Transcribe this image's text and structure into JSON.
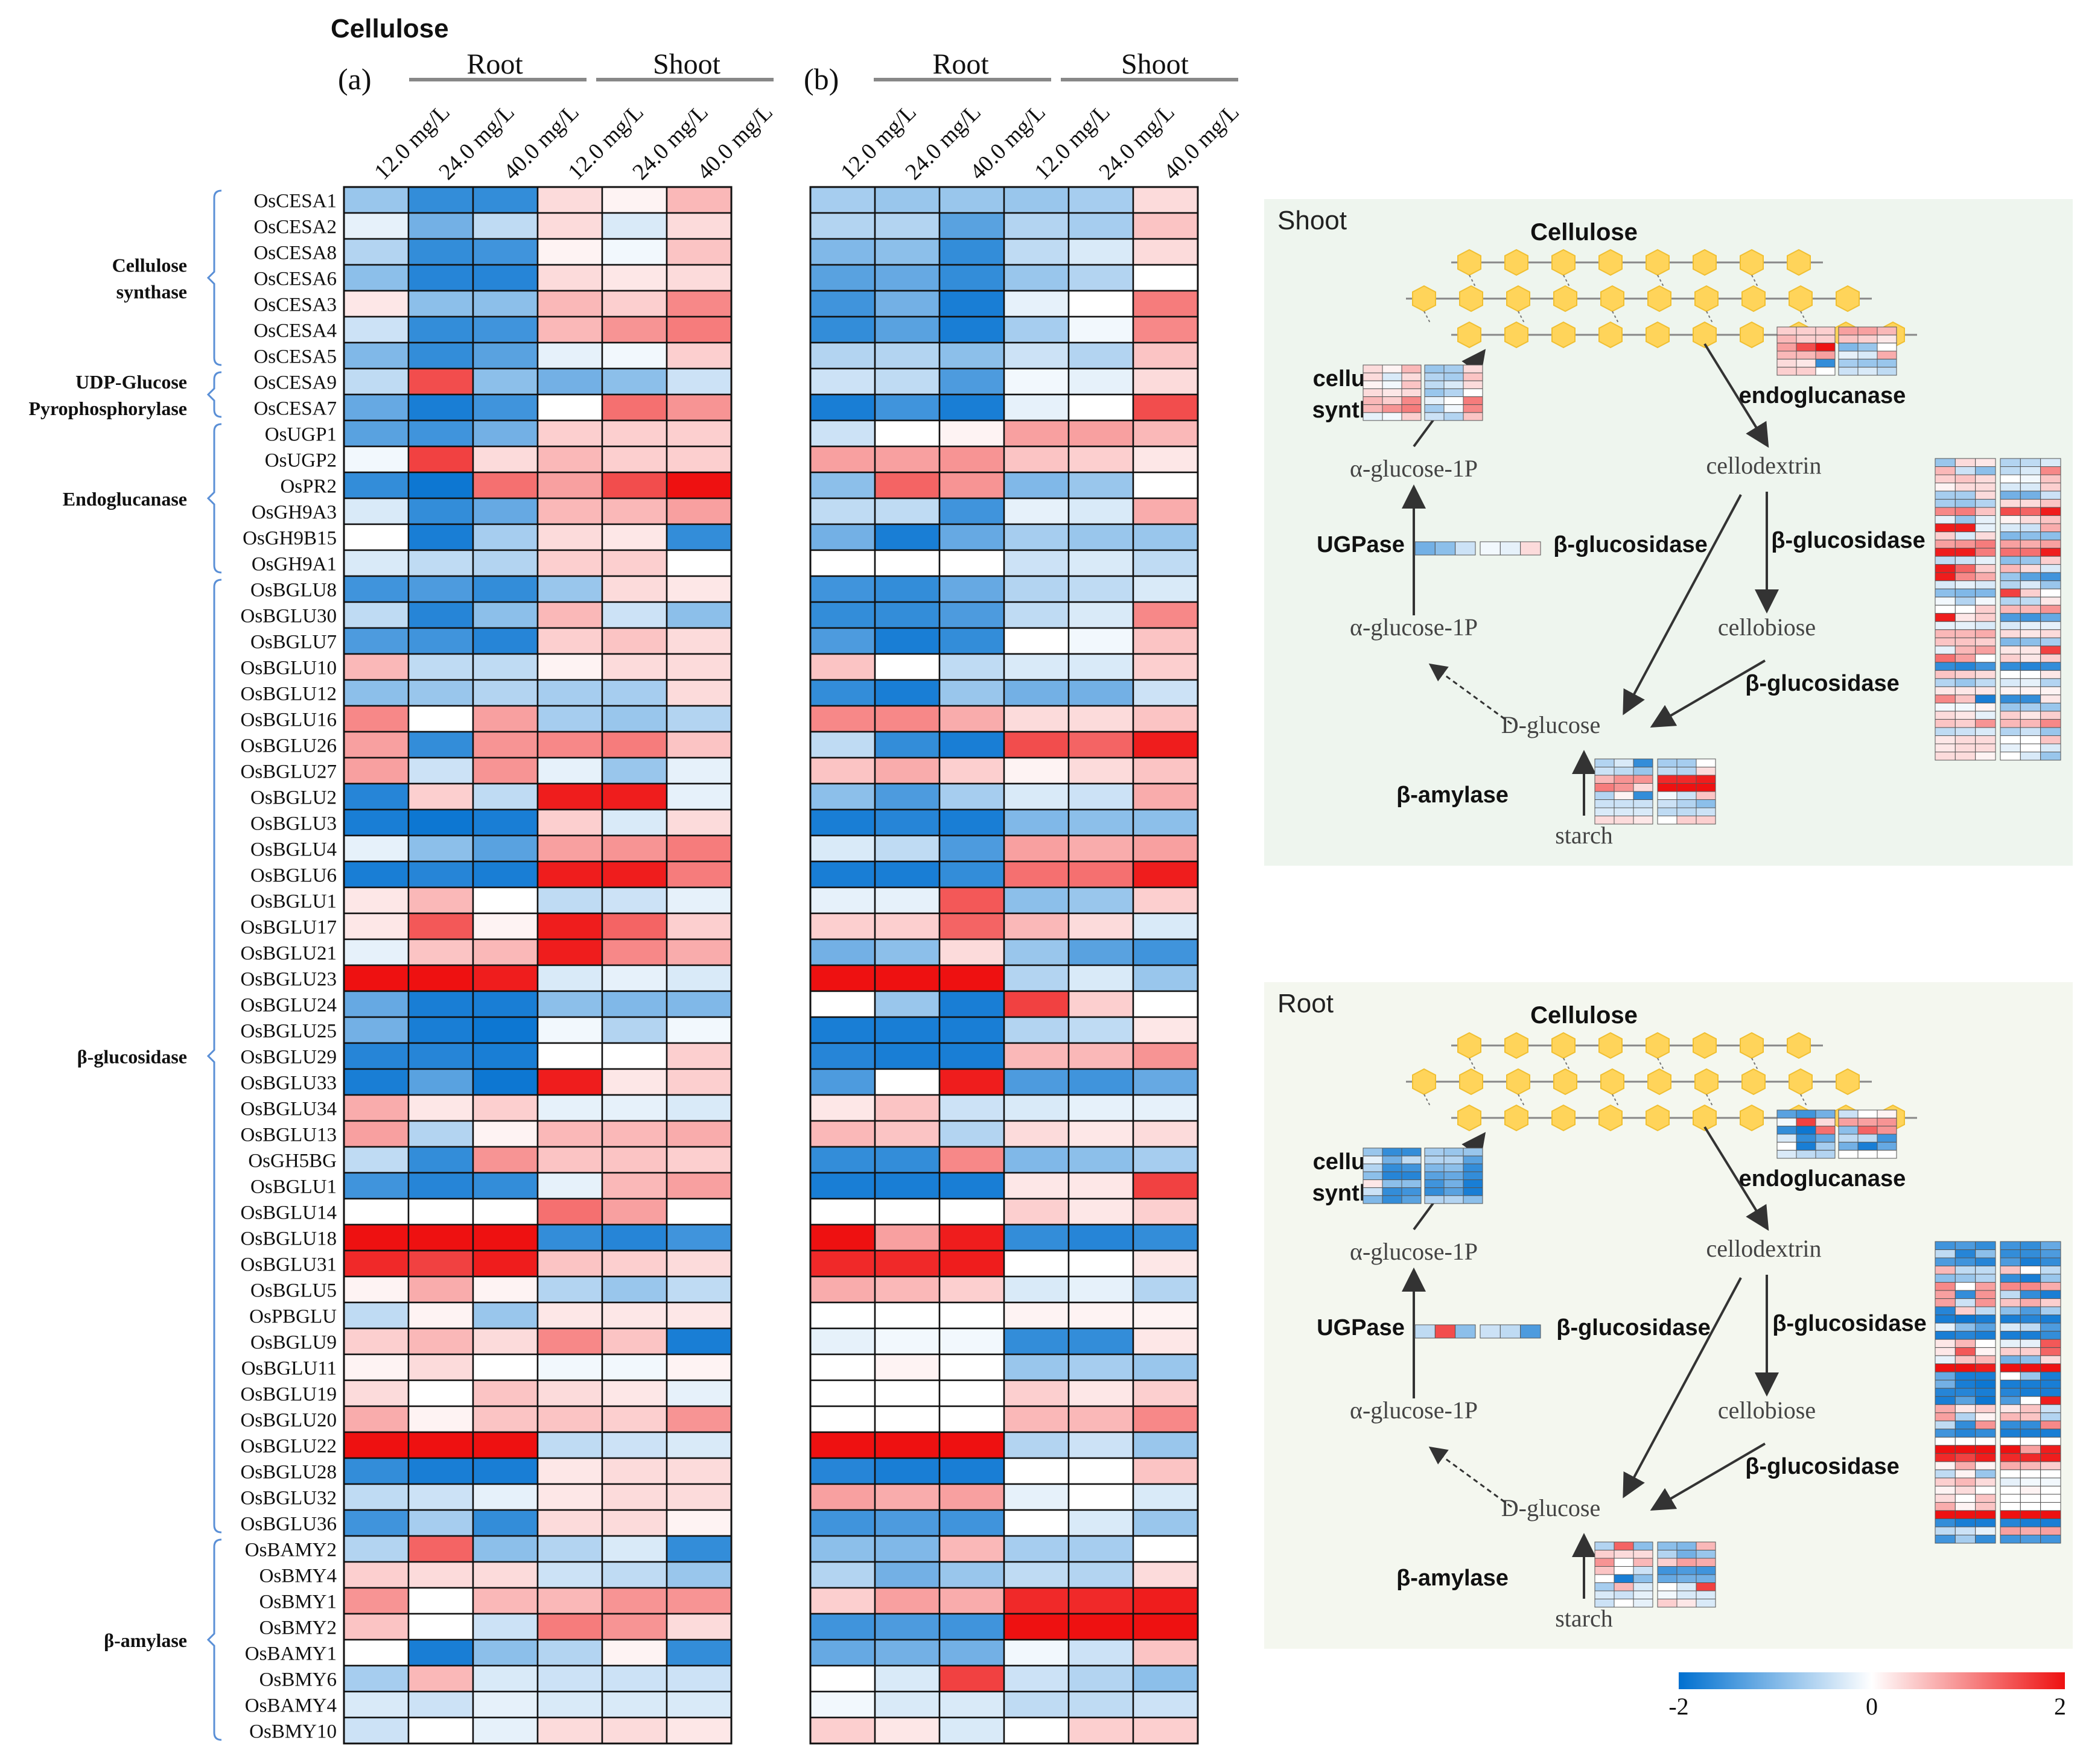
{
  "title": "Cellulose",
  "panel_a_label": "(a)",
  "panel_b_label": "(b)",
  "tissue_labels": [
    "Root",
    "Shoot"
  ],
  "chart_data": {
    "type": "heatmap",
    "columns": [
      "12.0 mg/L",
      "24.0 mg/L",
      "40.0 mg/L",
      "12.0 mg/L",
      "24.0 mg/L",
      "40.0 mg/L"
    ],
    "column_groups": [
      {
        "name": "Root",
        "span": 3
      },
      {
        "name": "Shoot",
        "span": 3
      }
    ],
    "genes": [
      "OsCESA1",
      "OsCESA2",
      "OsCESA8",
      "OsCESA6",
      "OsCESA3",
      "OsCESA4",
      "OsCESA5",
      "OsCESA9",
      "OsCESA7",
      "OsUGP1",
      "OsUGP2",
      "OsPR2",
      "OsGH9A3",
      "OsGH9B15",
      "OsGH9A1",
      "OsBGLU8",
      "OsBGLU30",
      "OsBGLU7",
      "OsBGLU10",
      "OsBGLU12",
      "OsBGLU16",
      "OsBGLU26",
      "OsBGLU27",
      "OsBGLU2",
      "OsBGLU3",
      "OsBGLU4",
      "OsBGLU6",
      "OsBGLU1",
      "OsBGLU17",
      "OsBGLU21",
      "OsBGLU23",
      "OsBGLU24",
      "OsBGLU25",
      "OsBGLU29",
      "OsBGLU33",
      "OsBGLU34",
      "OsBGLU13",
      "OsGH5BG",
      "OsBGLU1",
      "OsBGLU14",
      "OsBGLU18",
      "OsBGLU31",
      "OsBGLU5",
      "OsPBGLU",
      "OsBGLU9",
      "OsBGLU11",
      "OsBGLU19",
      "OsBGLU20",
      "OsBGLU22",
      "OsBGLU28",
      "OsBGLU32",
      "OsBGLU36",
      "OsBAMY2",
      "OsBMY4",
      "OsBMY1",
      "OsBMY2",
      "OsBAMY1",
      "OsBMY6",
      "OsBAMY4",
      "OsBMY10"
    ],
    "groups": [
      {
        "name": "Cellulose synthase",
        "lines": [
          "Cellulose",
          "synthase"
        ],
        "start": 0,
        "end": 6
      },
      {
        "name": "UDP-Glucose Pyrophosphorylase",
        "lines": [
          "UDP-Glucose",
          "Pyrophosphorylase"
        ],
        "start": 7,
        "end": 8
      },
      {
        "name": "Endoglucanase",
        "lines": [
          "Endoglucanase"
        ],
        "start": 9,
        "end": 14
      },
      {
        "name": "β-glucosidase",
        "lines": [
          "β-glucosidase"
        ],
        "start": 15,
        "end": 51
      },
      {
        "name": "β-amylase",
        "lines": [
          "β-amylase"
        ],
        "start": 52,
        "end": 59
      }
    ],
    "values_a": [
      [
        -0.8,
        -1.6,
        -1.6,
        0.3,
        0.1,
        0.6
      ],
      [
        -0.2,
        -1.1,
        -0.5,
        0.3,
        -0.3,
        0.3
      ],
      [
        -0.6,
        -1.6,
        -1.5,
        0.1,
        -0.1,
        0.5
      ],
      [
        -0.9,
        -1.7,
        -1.7,
        0.3,
        0.2,
        0.3
      ],
      [
        0.2,
        -0.9,
        -0.9,
        0.6,
        0.4,
        1.0
      ],
      [
        -0.4,
        -1.6,
        -1.5,
        0.6,
        0.9,
        1.1
      ],
      [
        -1.0,
        -1.6,
        -1.3,
        -0.2,
        -0.1,
        0.4
      ],
      [
        -0.5,
        1.5,
        -0.9,
        -1.1,
        -0.9,
        -0.4
      ],
      [
        -1.2,
        -1.8,
        -1.5,
        0.0,
        1.2,
        0.9
      ],
      [
        -1.3,
        -1.5,
        -1.1,
        0.4,
        0.4,
        0.4
      ],
      [
        -0.1,
        1.6,
        0.3,
        0.6,
        0.4,
        0.4
      ],
      [
        -1.6,
        -1.9,
        1.2,
        0.8,
        1.5,
        2.0
      ],
      [
        -0.3,
        -1.6,
        -1.2,
        0.6,
        0.6,
        0.8
      ],
      [
        0.0,
        -1.8,
        -0.7,
        0.3,
        0.2,
        -1.6
      ],
      [
        -0.3,
        -0.5,
        -0.6,
        0.4,
        0.4,
        0.0
      ],
      [
        -1.5,
        -1.4,
        -1.6,
        -0.8,
        0.3,
        0.2
      ],
      [
        -0.5,
        -1.7,
        -0.9,
        0.6,
        -0.4,
        -0.9
      ],
      [
        -1.4,
        -1.5,
        -1.7,
        0.4,
        0.5,
        0.3
      ],
      [
        0.6,
        -0.5,
        -0.5,
        0.1,
        0.3,
        0.3
      ],
      [
        -0.9,
        -0.8,
        -0.6,
        -0.7,
        -0.7,
        0.3
      ],
      [
        1.0,
        0.0,
        0.8,
        -0.7,
        -0.8,
        -0.6
      ],
      [
        0.8,
        -1.6,
        0.9,
        1.0,
        1.1,
        0.5
      ],
      [
        0.8,
        -0.4,
        0.9,
        -0.2,
        -0.8,
        -0.2
      ],
      [
        -1.7,
        0.4,
        -0.5,
        1.9,
        1.9,
        -0.2
      ],
      [
        -1.8,
        -1.9,
        -1.8,
        0.4,
        -0.3,
        0.3
      ],
      [
        -0.2,
        -0.9,
        -1.3,
        0.8,
        0.9,
        1.1
      ],
      [
        -1.8,
        -1.7,
        -1.8,
        1.9,
        1.9,
        1.1
      ],
      [
        0.2,
        0.6,
        0.0,
        -0.5,
        -0.4,
        -0.2
      ],
      [
        0.2,
        1.4,
        0.1,
        1.9,
        1.3,
        0.4
      ],
      [
        -0.2,
        0.5,
        0.6,
        1.9,
        1.0,
        0.7
      ],
      [
        2.0,
        2.0,
        1.9,
        -0.3,
        -0.2,
        -0.3
      ],
      [
        -1.2,
        -1.8,
        -1.8,
        -0.9,
        -1.0,
        -1.0
      ],
      [
        -1.1,
        -1.8,
        -1.9,
        -0.1,
        -0.6,
        -0.1
      ],
      [
        -1.7,
        -1.7,
        -1.8,
        0.0,
        0.0,
        0.4
      ],
      [
        -1.8,
        -1.3,
        -1.9,
        1.9,
        0.2,
        0.4
      ],
      [
        0.7,
        0.2,
        0.4,
        -0.2,
        -0.2,
        -0.3
      ],
      [
        0.8,
        -0.6,
        0.1,
        0.6,
        0.6,
        0.7
      ],
      [
        -0.5,
        -1.6,
        0.9,
        0.5,
        0.5,
        0.4
      ],
      [
        -1.5,
        -1.7,
        -1.6,
        -0.2,
        0.6,
        0.8
      ],
      [
        0.0,
        0.0,
        0.0,
        1.2,
        0.8,
        0.0
      ],
      [
        2.0,
        2.0,
        2.0,
        -1.6,
        -1.7,
        -1.5
      ],
      [
        1.8,
        1.6,
        1.9,
        0.5,
        0.4,
        0.3
      ],
      [
        0.1,
        0.7,
        0.1,
        -0.6,
        -0.8,
        -0.5
      ],
      [
        -0.5,
        0.1,
        -0.8,
        0.2,
        0.2,
        0.2
      ],
      [
        0.4,
        0.6,
        0.3,
        1.0,
        0.5,
        -1.8
      ],
      [
        0.1,
        0.3,
        0.0,
        -0.1,
        -0.1,
        0.1
      ],
      [
        0.3,
        0.0,
        0.5,
        0.3,
        0.2,
        -0.2
      ],
      [
        0.7,
        0.1,
        0.5,
        0.5,
        0.4,
        0.9
      ],
      [
        2.0,
        2.0,
        2.0,
        -0.5,
        -0.4,
        -0.3
      ],
      [
        -1.6,
        -1.8,
        -1.8,
        0.2,
        0.3,
        0.3
      ],
      [
        -0.5,
        -0.4,
        -0.2,
        0.2,
        0.3,
        0.3
      ],
      [
        -1.5,
        -0.7,
        -1.6,
        0.3,
        0.3,
        0.1
      ],
      [
        -0.6,
        1.3,
        -0.9,
        -0.6,
        -0.3,
        -1.6
      ],
      [
        0.4,
        0.3,
        0.3,
        -0.4,
        -0.5,
        -0.8
      ],
      [
        0.9,
        0.0,
        0.6,
        0.6,
        0.9,
        0.9
      ],
      [
        0.5,
        0.0,
        -0.4,
        1.1,
        0.9,
        0.3
      ],
      [
        0.0,
        -1.8,
        -0.9,
        -0.6,
        0.1,
        -1.6
      ],
      [
        -0.7,
        0.6,
        -0.3,
        -0.4,
        -0.4,
        -0.4
      ],
      [
        -0.3,
        -0.4,
        -0.2,
        -0.3,
        -0.3,
        -0.3
      ],
      [
        -0.4,
        0.0,
        -0.2,
        0.3,
        0.3,
        0.2
      ]
    ],
    "values_b": [
      [
        -0.7,
        -0.8,
        -0.8,
        -0.8,
        -0.7,
        0.3
      ],
      [
        -0.6,
        -0.6,
        -1.3,
        -0.6,
        -0.7,
        0.5
      ],
      [
        -1.0,
        -0.9,
        -1.6,
        -0.5,
        -0.3,
        0.3
      ],
      [
        -1.3,
        -1.2,
        -1.6,
        -0.8,
        -0.6,
        0.0
      ],
      [
        -1.5,
        -1.1,
        -1.8,
        -0.2,
        0.0,
        1.1
      ],
      [
        -1.6,
        -1.3,
        -1.8,
        -0.7,
        -0.1,
        1.0
      ],
      [
        -0.6,
        -0.6,
        -0.9,
        -0.4,
        -0.6,
        0.5
      ],
      [
        -0.4,
        -0.5,
        -1.4,
        -0.1,
        -0.2,
        0.3
      ],
      [
        -1.8,
        -1.5,
        -1.8,
        -0.2,
        0.0,
        1.5
      ],
      [
        -0.4,
        0.0,
        0.1,
        0.8,
        0.8,
        0.6
      ],
      [
        0.8,
        0.8,
        0.9,
        0.5,
        0.4,
        0.2
      ],
      [
        -0.9,
        1.3,
        0.9,
        -1.0,
        -0.8,
        0.0
      ],
      [
        -0.5,
        -0.5,
        -1.5,
        -0.2,
        -0.3,
        0.7
      ],
      [
        -1.1,
        -1.8,
        -1.2,
        -0.7,
        -0.8,
        -0.8
      ],
      [
        0.0,
        0.0,
        0.0,
        -0.4,
        -0.3,
        -0.5
      ],
      [
        -1.5,
        -1.6,
        -1.2,
        -0.6,
        -0.5,
        -0.3
      ],
      [
        -1.6,
        -1.6,
        -1.4,
        -0.5,
        -0.3,
        1.0
      ],
      [
        -1.4,
        -1.8,
        -1.6,
        0.0,
        -0.1,
        0.5
      ],
      [
        0.5,
        0.0,
        -0.5,
        -0.3,
        -0.3,
        0.4
      ],
      [
        -1.6,
        -1.8,
        -0.8,
        -1.1,
        -1.1,
        -0.4
      ],
      [
        1.0,
        1.0,
        0.7,
        0.3,
        0.3,
        0.5
      ],
      [
        -0.5,
        -1.6,
        -1.8,
        1.5,
        1.3,
        1.9
      ],
      [
        0.5,
        0.7,
        0.4,
        0.1,
        0.3,
        0.5
      ],
      [
        -0.9,
        -1.4,
        -0.7,
        -0.3,
        -0.4,
        0.7
      ],
      [
        -1.8,
        -1.7,
        -1.8,
        -1.0,
        -0.9,
        -0.9
      ],
      [
        -0.3,
        -0.5,
        -1.4,
        0.8,
        0.7,
        0.8
      ],
      [
        -1.8,
        -1.8,
        -1.6,
        1.2,
        1.2,
        1.9
      ],
      [
        -0.2,
        -0.2,
        1.4,
        -0.9,
        -0.8,
        0.4
      ],
      [
        0.4,
        0.4,
        1.3,
        0.6,
        0.3,
        -0.3
      ],
      [
        -1.1,
        -0.9,
        0.3,
        -0.8,
        -1.3,
        -1.5
      ],
      [
        2.0,
        2.0,
        2.0,
        -0.6,
        -0.3,
        -0.8
      ],
      [
        0.0,
        -0.8,
        -1.8,
        1.6,
        0.4,
        0.0
      ],
      [
        -1.8,
        -1.8,
        -1.8,
        -0.6,
        -0.5,
        0.2
      ],
      [
        -1.7,
        -1.8,
        -1.8,
        0.6,
        0.6,
        0.9
      ],
      [
        -1.4,
        0.0,
        1.9,
        -1.4,
        -1.5,
        -1.2
      ],
      [
        0.2,
        0.5,
        -0.4,
        -0.3,
        -0.2,
        -0.2
      ],
      [
        0.6,
        0.5,
        -0.6,
        0.3,
        0.2,
        0.3
      ],
      [
        -1.6,
        -1.6,
        1.0,
        -1.0,
        -0.9,
        -0.7
      ],
      [
        -1.8,
        -1.8,
        -1.8,
        0.2,
        0.2,
        1.6
      ],
      [
        0.0,
        0.0,
        0.0,
        0.4,
        0.2,
        0.4
      ],
      [
        2.0,
        0.8,
        1.9,
        -1.6,
        -1.7,
        -1.6
      ],
      [
        1.8,
        1.8,
        1.9,
        0.0,
        0.0,
        0.2
      ],
      [
        0.7,
        0.6,
        0.4,
        -0.3,
        -0.2,
        -0.6
      ],
      [
        0.0,
        0.0,
        0.0,
        0.1,
        0.1,
        0.1
      ],
      [
        -0.2,
        -0.1,
        -0.1,
        -1.6,
        -1.6,
        0.2
      ],
      [
        0.0,
        0.1,
        0.0,
        -0.8,
        -0.7,
        -0.8
      ],
      [
        0.0,
        0.0,
        0.0,
        0.4,
        0.2,
        0.4
      ],
      [
        0.0,
        0.0,
        0.0,
        0.6,
        0.6,
        1.0
      ],
      [
        2.0,
        2.0,
        2.0,
        -0.6,
        -0.4,
        -0.8
      ],
      [
        -1.7,
        -1.8,
        -1.8,
        0.0,
        0.0,
        0.5
      ],
      [
        0.8,
        0.7,
        0.8,
        -0.2,
        0.0,
        -0.3
      ],
      [
        -1.5,
        -1.4,
        -1.5,
        0.0,
        -0.3,
        -0.8
      ],
      [
        -0.9,
        -1.0,
        0.6,
        -0.7,
        -0.7,
        0.0
      ],
      [
        -0.6,
        -1.1,
        -0.8,
        -0.5,
        -0.6,
        0.3
      ],
      [
        0.4,
        0.8,
        0.7,
        1.8,
        1.8,
        1.9
      ],
      [
        -1.5,
        -1.4,
        -1.5,
        2.0,
        2.0,
        2.0
      ],
      [
        -1.2,
        -1.1,
        -1.1,
        -0.1,
        -0.4,
        0.5
      ],
      [
        0.0,
        -0.3,
        1.6,
        -0.4,
        -0.6,
        -0.9
      ],
      [
        -0.1,
        -0.3,
        -0.3,
        -0.5,
        -0.5,
        -0.4
      ],
      [
        0.4,
        0.2,
        -0.3,
        0.0,
        0.4,
        0.4
      ]
    ],
    "colorbar": {
      "min": -2,
      "max": 2,
      "ticks": [
        "-2",
        "0",
        "2"
      ],
      "low_color": "#0070d0",
      "mid_color": "#ffffff",
      "high_color": "#ee1111"
    }
  },
  "pathway": {
    "shoot_title": "Shoot",
    "root_title": "Root",
    "cellulose": "Cellulose",
    "cellulose_synthase": [
      "cellulose",
      "synthase"
    ],
    "endoglucanase": "endoglucanase",
    "alpha_glucose_top": "α-glucose-1P",
    "alpha_glucose_bottom": "α-glucose-1P",
    "cellodextrin": "cellodextrin",
    "ugpase": "UGPase",
    "beta_glucosidase": "β-glucosidase",
    "cellobiose": "cellobiose",
    "d_glucose": "D-glucose",
    "beta_amylase": "β-amylase",
    "starch": "starch"
  }
}
